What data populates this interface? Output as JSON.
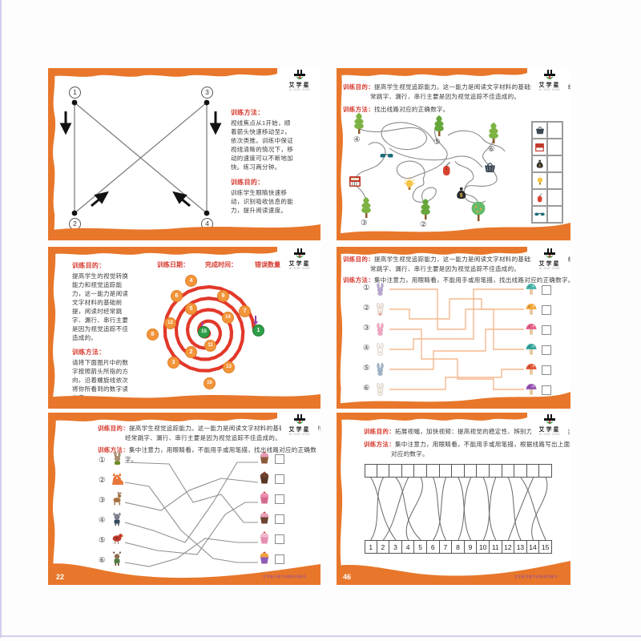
{
  "brand": {
    "name": "艾学星",
    "sub": "AI XUE XING"
  },
  "palette": {
    "orange": "#e8772b",
    "heading_red": "#d63b2f",
    "spiral_red": "#e2382a",
    "circle_orange": "#f2953b",
    "circle_green": "#2f9e49",
    "line_orange": "#f5b98f",
    "line_gray": "#8a8a8a",
    "edge_lavender": "#d5cdea",
    "footer_purple": "#8e44ad"
  },
  "common": {
    "purpose_label": "训练目的：",
    "method_label": "训练方法："
  },
  "panel1": {
    "nodes": [
      "1",
      "2",
      "3",
      "4"
    ],
    "method_text": "视线焦点从1开始，顺着箭头快速移动至2，依次类推。训练中保证视线清晰的情况下，移动的速度可以不断地加快。练习两分钟。",
    "purpose_text": "训练学生眼睛快速移动，识别吸收信息的能力，提升阅读速度。"
  },
  "panel2": {
    "purpose_text": "提高学生视觉追踪能力。这一能力是阅读文字材料的基础前提，阅读时经常跳字、漏行、串行主要是因为视觉追踪不佳造成的。",
    "method_text": "找出线路对应的正确数字。",
    "tree_numbers": [
      "④",
      "⑤",
      "⑥",
      "③",
      "②"
    ],
    "answer_icons": [
      "shopping-basket",
      "piano",
      "money-bag",
      "light-bulb",
      "computer-mouse",
      "sunglasses"
    ]
  },
  "panel3": {
    "date_label": "训练日期：",
    "time_label": "完成时间：",
    "errors_label": "错误数量：",
    "purpose_text": "提高学生的视觉转换能力和视觉追踪能力，这一能力是阅读文字材料的基础前提，阅读时经常跳字、漏行、串行主要是因为视觉追踪不佳造成的。",
    "method_text": "请将下面图片中的数字按照箭头所指的方向，沿着螺旋线依次将你所看到的数字读出来。",
    "spiral": [
      "1",
      "2",
      "3",
      "4",
      "5",
      "6",
      "7",
      "8",
      "9",
      "10",
      "11",
      "12",
      "13",
      "14",
      "15"
    ]
  },
  "panel4": {
    "purpose_text": "提高学生视觉追踪能力，这一能力是阅读文字材料的基础前提，阅读时经常跳字、漏行、串行主要是因为视觉追踪不佳造成的。",
    "method_text": "集中注意力，用眼睛看，不能用手或用笔描，找出线路对应的正确数字。",
    "rows": [
      {
        "num": "①",
        "animal": "rabbit",
        "animal_color": "#b9a8d6",
        "mushroom_color": "#4db6ac"
      },
      {
        "num": "②",
        "animal": "rabbit",
        "animal_color": "#f3ece3",
        "mushroom_color": "#f2a93b"
      },
      {
        "num": "③",
        "animal": "rabbit",
        "animal_color": "#f2a7c3",
        "mushroom_color": "#e8638c"
      },
      {
        "num": "④",
        "animal": "rabbit",
        "animal_color": "#f7f3ee",
        "mushroom_color": "#3aa79f"
      },
      {
        "num": "⑤",
        "animal": "rabbit",
        "animal_color": "#9fb4c7",
        "mushroom_color": "#e2593a"
      },
      {
        "num": "⑥",
        "animal": "rabbit",
        "animal_color": "#f3ece3",
        "mushroom_color": "#9b59b6"
      }
    ]
  },
  "panel5": {
    "purpose_text": "提高学生视觉追踪能力。这一能力是阅读文字材料的基础前提，阅读时经常跳字、漏行、串行主要是因为视觉追踪不佳造成的。",
    "method_text": "集中注意力，用眼睛看，不能用手或用笔描，找出线路对应的正确数字。",
    "rows": [
      {
        "num": "①",
        "animal": "rabbit",
        "animal_color": "#a98d6f",
        "frost": "#e59ab5",
        "wrap": "#8d5a3b"
      },
      {
        "num": "②",
        "animal": "fox",
        "animal_color": "#e8763a",
        "frost": "#6d4230",
        "wrap": "#5b3626"
      },
      {
        "num": "③",
        "animal": "deer",
        "animal_color": "#a5713f",
        "frost": "#ef8fb0",
        "wrap": "#d46a8e"
      },
      {
        "num": "④",
        "animal": "wolf",
        "animal_color": "#7d7f8c",
        "frost": "#e8a0b8",
        "wrap": "#6d4230"
      },
      {
        "num": "⑤",
        "animal": "bird",
        "animal_color": "#c0392b",
        "frost": "#f2b9cc",
        "wrap": "#e58fb0"
      },
      {
        "num": "⑥",
        "animal": "reindeer",
        "animal_color": "#8d6e4e",
        "frost": "#f0a13e",
        "wrap": "#8e5bb5"
      }
    ],
    "page_number": "22",
    "footer_text": "艾学星注意力训练系列图书"
  },
  "panel6": {
    "purpose_text": "拓展视幅，加快视频：提高视觉的稳定性、辨别力、定向搜索能力。",
    "method_text": "集中注意力，用眼睛看，不能用手或用笔描，根据线路写出上面方格对应的数字。",
    "cells": [
      "1",
      "2",
      "3",
      "4",
      "5",
      "6",
      "7",
      "8",
      "9",
      "10",
      "11",
      "12",
      "13",
      "14",
      "15"
    ],
    "page_number": "46",
    "footer_text": "艾学星注意力训练系列图书"
  }
}
